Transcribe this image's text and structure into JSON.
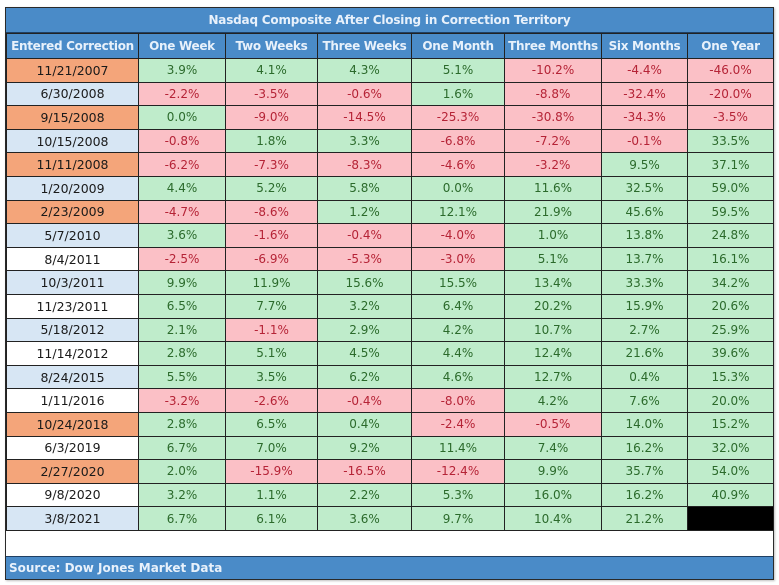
{
  "title": "Nasdaq Composite After Closing in Correction Territory",
  "columns": [
    "Entered Correction",
    "One Week",
    "Two Weeks",
    "Three Weeks",
    "One Month",
    "Three Months",
    "Six Months",
    "One Year"
  ],
  "colors": {
    "header_bg": "#4a8bc8",
    "positive_bg": "#bfeccb",
    "positive_text": "#2b6a2b",
    "negative_bg": "#fbc0c6",
    "negative_text": "#b52336",
    "date_orange": "#f4a57a",
    "date_blue": "#d7e6f4",
    "date_white": "#ffffff"
  },
  "rows": [
    {
      "date": "11/21/2007",
      "date_style": "orange",
      "values": [
        "3.9%",
        "4.1%",
        "4.3%",
        "5.1%",
        "-10.2%",
        "-4.4%",
        "-46.0%"
      ]
    },
    {
      "date": "6/30/2008",
      "date_style": "blue",
      "values": [
        "-2.2%",
        "-3.5%",
        "-0.6%",
        "1.6%",
        "-8.8%",
        "-32.4%",
        "-20.0%"
      ]
    },
    {
      "date": "9/15/2008",
      "date_style": "orange",
      "values": [
        "0.0%",
        "-9.0%",
        "-14.5%",
        "-25.3%",
        "-30.8%",
        "-34.3%",
        "-3.5%"
      ]
    },
    {
      "date": "10/15/2008",
      "date_style": "blue",
      "values": [
        "-0.8%",
        "1.8%",
        "3.3%",
        "-6.8%",
        "-7.2%",
        "-0.1%",
        "33.5%"
      ]
    },
    {
      "date": "11/11/2008",
      "date_style": "orange",
      "values": [
        "-6.2%",
        "-7.3%",
        "-8.3%",
        "-4.6%",
        "-3.2%",
        "9.5%",
        "37.1%"
      ]
    },
    {
      "date": "1/20/2009",
      "date_style": "blue",
      "values": [
        "4.4%",
        "5.2%",
        "5.8%",
        "0.0%",
        "11.6%",
        "32.5%",
        "59.0%"
      ]
    },
    {
      "date": "2/23/2009",
      "date_style": "orange",
      "values": [
        "-4.7%",
        "-8.6%",
        "1.2%",
        "12.1%",
        "21.9%",
        "45.6%",
        "59.5%"
      ]
    },
    {
      "date": "5/7/2010",
      "date_style": "blue",
      "values": [
        "3.6%",
        "-1.6%",
        "-0.4%",
        "-4.0%",
        "1.0%",
        "13.8%",
        "24.8%"
      ]
    },
    {
      "date": "8/4/2011",
      "date_style": "white",
      "values": [
        "-2.5%",
        "-6.9%",
        "-5.3%",
        "-3.0%",
        "5.1%",
        "13.7%",
        "16.1%"
      ]
    },
    {
      "date": "10/3/2011",
      "date_style": "blue",
      "values": [
        "9.9%",
        "11.9%",
        "15.6%",
        "15.5%",
        "13.4%",
        "33.3%",
        "34.2%"
      ]
    },
    {
      "date": "11/23/2011",
      "date_style": "white",
      "values": [
        "6.5%",
        "7.7%",
        "3.2%",
        "6.4%",
        "20.2%",
        "15.9%",
        "20.6%"
      ]
    },
    {
      "date": "5/18/2012",
      "date_style": "blue",
      "values": [
        "2.1%",
        "-1.1%",
        "2.9%",
        "4.2%",
        "10.7%",
        "2.7%",
        "25.9%"
      ]
    },
    {
      "date": "11/14/2012",
      "date_style": "white",
      "values": [
        "2.8%",
        "5.1%",
        "4.5%",
        "4.4%",
        "12.4%",
        "21.6%",
        "39.6%"
      ]
    },
    {
      "date": "8/24/2015",
      "date_style": "blue",
      "values": [
        "5.5%",
        "3.5%",
        "6.2%",
        "4.6%",
        "12.7%",
        "0.4%",
        "15.3%"
      ]
    },
    {
      "date": "1/11/2016",
      "date_style": "white",
      "values": [
        "-3.2%",
        "-2.6%",
        "-0.4%",
        "-8.0%",
        "4.2%",
        "7.6%",
        "20.0%"
      ]
    },
    {
      "date": "10/24/2018",
      "date_style": "orange",
      "values": [
        "2.8%",
        "6.5%",
        "0.4%",
        "-2.4%",
        "-0.5%",
        "14.0%",
        "15.2%"
      ]
    },
    {
      "date": "6/3/2019",
      "date_style": "white",
      "values": [
        "6.7%",
        "7.0%",
        "9.2%",
        "11.4%",
        "7.4%",
        "16.2%",
        "32.0%"
      ]
    },
    {
      "date": "2/27/2020",
      "date_style": "orange",
      "values": [
        "2.0%",
        "-15.9%",
        "-16.5%",
        "-12.4%",
        "9.9%",
        "35.7%",
        "54.0%"
      ]
    },
    {
      "date": "9/8/2020",
      "date_style": "white",
      "values": [
        "3.2%",
        "1.1%",
        "2.2%",
        "5.3%",
        "16.0%",
        "16.2%",
        "40.9%"
      ]
    },
    {
      "date": "3/8/2021",
      "date_style": "blue",
      "values": [
        "6.7%",
        "6.1%",
        "3.6%",
        "9.7%",
        "10.4%",
        "21.2%",
        null
      ]
    }
  ],
  "footer": "Source: Dow Jones Market Data"
}
